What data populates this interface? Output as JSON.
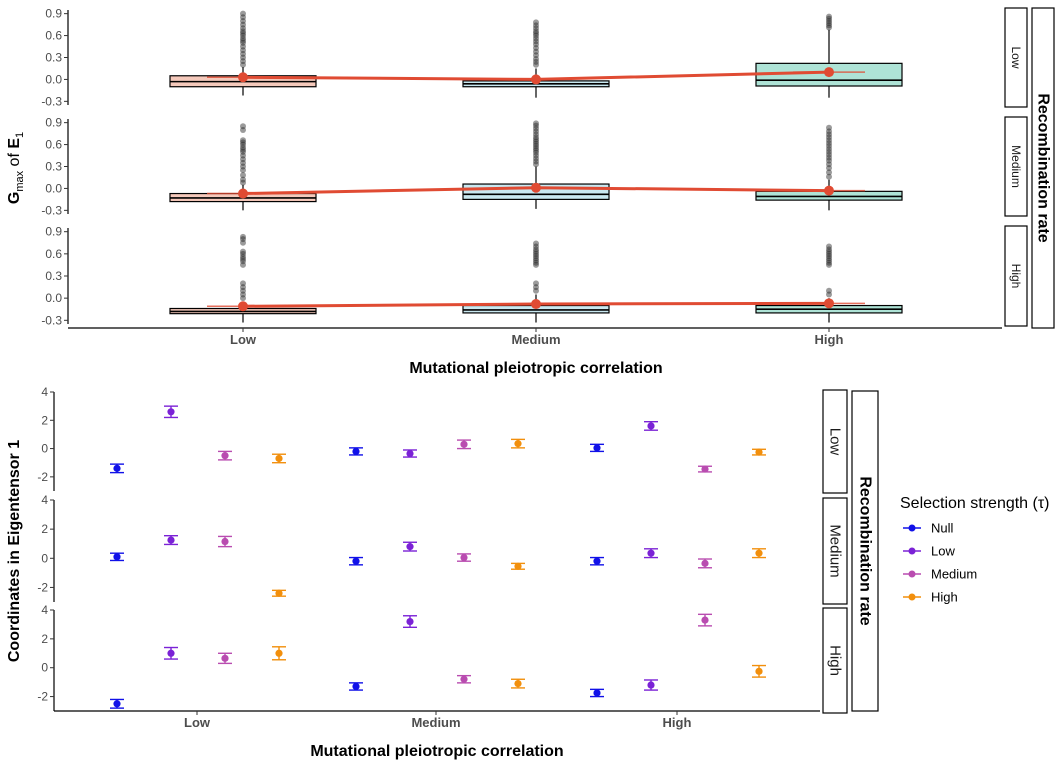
{
  "chart_data": [
    {
      "type": "box",
      "ylabel_main": "G",
      "ylabel_sub": "max",
      "ylabel_mid": " of ",
      "ylabel_end": "E",
      "ylabel_end_sub": "1",
      "xlabel": "Mutational pleiotropic correlation",
      "facet_title": "Recombination rate",
      "ylim": [
        -0.35,
        0.95
      ],
      "yticks": [
        -0.3,
        0.0,
        0.3,
        0.6,
        0.9
      ],
      "ytick_labels": [
        "-0.3",
        "0.0",
        "0.3",
        "0.6",
        "0.9"
      ],
      "categories": [
        "Low",
        "Medium",
        "High"
      ],
      "fills": [
        "#f5c9bb",
        "#c9e8f0",
        "#aee3d6"
      ],
      "line_color": "#e04b33",
      "panels": [
        {
          "label": "Low",
          "boxes": [
            {
              "q1": -0.1,
              "median": -0.03,
              "q3": 0.05,
              "whisker_low": -0.22,
              "whisker_high": 0.17,
              "outliers": [
                0.2,
                0.25,
                0.3,
                0.35,
                0.4,
                0.45,
                0.5,
                0.53,
                0.56,
                0.6,
                0.63,
                0.66,
                0.7,
                0.75,
                0.8,
                0.85,
                0.9
              ]
            },
            {
              "q1": -0.1,
              "median": -0.06,
              "q3": -0.02,
              "whisker_low": -0.25,
              "whisker_high": 0.15,
              "outliers": [
                0.2,
                0.24,
                0.28,
                0.33,
                0.38,
                0.43,
                0.48,
                0.52,
                0.56,
                0.6,
                0.63,
                0.66,
                0.7,
                0.74,
                0.78
              ]
            },
            {
              "q1": -0.09,
              "median": -0.01,
              "q3": 0.22,
              "whisker_low": -0.25,
              "whisker_high": 0.68,
              "outliers": [
                0.71,
                0.74,
                0.77,
                0.8,
                0.83,
                0.86
              ]
            }
          ],
          "means": [
            0.03,
            0.0,
            0.1
          ]
        },
        {
          "label": "Medium",
          "boxes": [
            {
              "q1": -0.18,
              "median": -0.13,
              "q3": -0.07,
              "whisker_low": -0.3,
              "whisker_high": 0.05,
              "outliers": [
                0.08,
                0.12,
                0.18,
                0.25,
                0.3,
                0.35,
                0.4,
                0.45,
                0.5,
                0.53,
                0.56,
                0.6,
                0.63,
                0.66,
                0.8,
                0.85
              ]
            },
            {
              "q1": -0.15,
              "median": -0.08,
              "q3": 0.06,
              "whisker_low": -0.28,
              "whisker_high": 0.3,
              "outliers": [
                0.33,
                0.37,
                0.41,
                0.45,
                0.49,
                0.52,
                0.55,
                0.58,
                0.61,
                0.64,
                0.67,
                0.7,
                0.74,
                0.78,
                0.82,
                0.86,
                0.89
              ]
            },
            {
              "q1": -0.16,
              "median": -0.11,
              "q3": -0.04,
              "whisker_low": -0.3,
              "whisker_high": 0.12,
              "outliers": [
                0.16,
                0.22,
                0.28,
                0.33,
                0.38,
                0.42,
                0.46,
                0.5,
                0.54,
                0.58,
                0.62,
                0.66,
                0.7,
                0.74,
                0.78,
                0.83
              ]
            }
          ],
          "means": [
            -0.07,
            0.01,
            -0.03
          ]
        },
        {
          "label": "High",
          "boxes": [
            {
              "q1": -0.21,
              "median": -0.18,
              "q3": -0.14,
              "whisker_low": -0.33,
              "whisker_high": -0.05,
              "outliers": [
                0.0,
                0.05,
                0.1,
                0.15,
                0.2,
                0.45,
                0.5,
                0.53,
                0.56,
                0.6,
                0.63,
                0.75,
                0.8,
                0.83
              ]
            },
            {
              "q1": -0.2,
              "median": -0.16,
              "q3": -0.1,
              "whisker_low": -0.33,
              "whisker_high": 0.05,
              "outliers": [
                0.1,
                0.15,
                0.2,
                0.45,
                0.48,
                0.51,
                0.54,
                0.57,
                0.6,
                0.63,
                0.66,
                0.7,
                0.74
              ]
            },
            {
              "q1": -0.2,
              "median": -0.15,
              "q3": -0.1,
              "whisker_low": -0.33,
              "whisker_high": 0.0,
              "outliers": [
                0.05,
                0.1,
                0.45,
                0.48,
                0.51,
                0.54,
                0.57,
                0.6,
                0.63,
                0.66,
                0.7
              ]
            }
          ],
          "means": [
            -0.11,
            -0.08,
            -0.07
          ]
        }
      ]
    },
    {
      "type": "scatter",
      "ylabel": "Coordinates in Eigentensor 1",
      "xlabel": "Mutational pleiotropic correlation",
      "facet_title": "Recombination rate",
      "ylim": [
        -3,
        4
      ],
      "yticks": [
        -2,
        0,
        2,
        4
      ],
      "ytick_labels": [
        "-2",
        "0",
        "2",
        "4"
      ],
      "categories": [
        "Low",
        "Medium",
        "High"
      ],
      "legend_title": "Selection strength (τ)",
      "legend_placement": "right",
      "series": [
        {
          "name": "Null",
          "color": "#1111e8"
        },
        {
          "name": "Low",
          "color": "#7b22d6"
        },
        {
          "name": "Medium",
          "color": "#b94cb0"
        },
        {
          "name": "High",
          "color": "#f28f0c"
        }
      ],
      "panels": [
        {
          "label": "Low",
          "points": [
            [
              {
                "mean": -1.4,
                "lo": -1.7,
                "hi": -1.1
              },
              {
                "mean": 2.6,
                "lo": 2.2,
                "hi": 3.0
              },
              {
                "mean": -0.5,
                "lo": -0.8,
                "hi": -0.2
              },
              {
                "mean": -0.7,
                "lo": -1.0,
                "hi": -0.4
              }
            ],
            [
              {
                "mean": -0.2,
                "lo": -0.45,
                "hi": 0.05
              },
              {
                "mean": -0.35,
                "lo": -0.6,
                "hi": -0.1
              },
              {
                "mean": 0.3,
                "lo": 0.0,
                "hi": 0.6
              },
              {
                "mean": 0.35,
                "lo": 0.05,
                "hi": 0.65
              }
            ],
            [
              {
                "mean": 0.05,
                "lo": -0.2,
                "hi": 0.3
              },
              {
                "mean": 1.6,
                "lo": 1.3,
                "hi": 1.9
              },
              {
                "mean": -1.45,
                "lo": -1.65,
                "hi": -1.25
              },
              {
                "mean": -0.25,
                "lo": -0.45,
                "hi": -0.05
              }
            ]
          ]
        },
        {
          "label": "Medium",
          "points": [
            [
              {
                "mean": 0.1,
                "lo": -0.15,
                "hi": 0.35
              },
              {
                "mean": 1.25,
                "lo": 0.95,
                "hi": 1.55
              },
              {
                "mean": 1.15,
                "lo": 0.8,
                "hi": 1.5
              },
              {
                "mean": -2.4,
                "lo": -2.6,
                "hi": -2.2
              }
            ],
            [
              {
                "mean": -0.2,
                "lo": -0.45,
                "hi": 0.05
              },
              {
                "mean": 0.8,
                "lo": 0.5,
                "hi": 1.1
              },
              {
                "mean": 0.05,
                "lo": -0.2,
                "hi": 0.3
              },
              {
                "mean": -0.55,
                "lo": -0.75,
                "hi": -0.35
              }
            ],
            [
              {
                "mean": -0.2,
                "lo": -0.45,
                "hi": 0.05
              },
              {
                "mean": 0.35,
                "lo": 0.05,
                "hi": 0.65
              },
              {
                "mean": -0.35,
                "lo": -0.65,
                "hi": -0.05
              },
              {
                "mean": 0.35,
                "lo": 0.05,
                "hi": 0.65
              }
            ]
          ]
        },
        {
          "label": "High",
          "points": [
            [
              {
                "mean": -2.5,
                "lo": -2.8,
                "hi": -2.2
              },
              {
                "mean": 1.0,
                "lo": 0.6,
                "hi": 1.4
              },
              {
                "mean": 0.65,
                "lo": 0.3,
                "hi": 1.0
              },
              {
                "mean": 1.0,
                "lo": 0.55,
                "hi": 1.45
              }
            ],
            [
              {
                "mean": -1.3,
                "lo": -1.55,
                "hi": -1.05
              },
              {
                "mean": 3.2,
                "lo": 2.8,
                "hi": 3.6
              },
              {
                "mean": -0.8,
                "lo": -1.05,
                "hi": -0.55
              },
              {
                "mean": -1.1,
                "lo": -1.4,
                "hi": -0.8
              }
            ],
            [
              {
                "mean": -1.75,
                "lo": -2.0,
                "hi": -1.5
              },
              {
                "mean": -1.2,
                "lo": -1.55,
                "hi": -0.85
              },
              {
                "mean": 3.3,
                "lo": 2.9,
                "hi": 3.7
              },
              {
                "mean": -0.25,
                "lo": -0.65,
                "hi": 0.15
              }
            ]
          ]
        }
      ]
    }
  ]
}
